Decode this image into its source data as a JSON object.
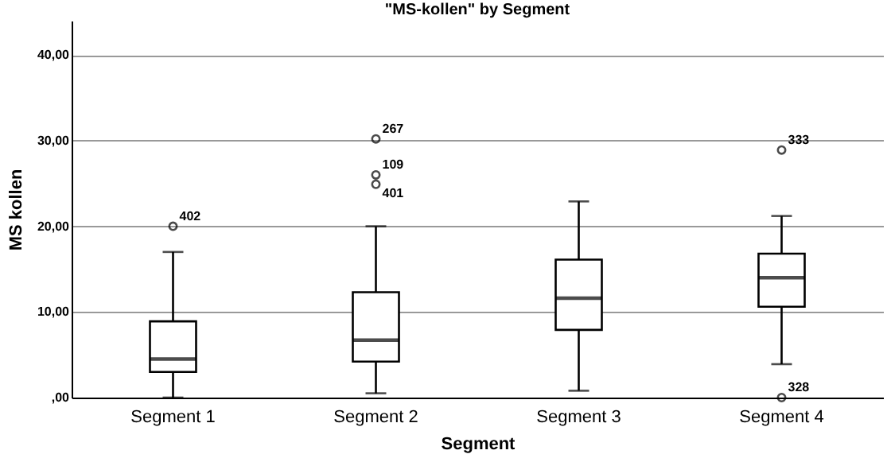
{
  "chart_data": {
    "type": "box",
    "title": "\"MS-kollen\" by Segment",
    "xlabel": "Segment",
    "ylabel": "MS kollen",
    "categories": [
      "Segment 1",
      "Segment 2",
      "Segment 3",
      "Segment 4"
    ],
    "boxes": [
      {
        "low": 0,
        "q1": 3,
        "median": 4.5,
        "q3": 8.9,
        "high": 17
      },
      {
        "low": 0.5,
        "q1": 4.2,
        "median": 6.7,
        "q3": 12.3,
        "high": 20
      },
      {
        "low": 0.8,
        "q1": 7.9,
        "median": 11.6,
        "q3": 16.1,
        "high": 22.9
      },
      {
        "low": 3.9,
        "q1": 10.6,
        "median": 14,
        "q3": 16.8,
        "high": 21.2
      }
    ],
    "series": [
      {
        "type": "scatter",
        "x": [
          "Segment 1",
          "Segment 2",
          "Segment 2",
          "Segment 2",
          "Segment 4",
          "Segment 4"
        ],
        "values": [
          20,
          30.2,
          26,
          24.9,
          28.9,
          0
        ]
      }
    ],
    "ylim": [
      0,
      44
    ],
    "yticks": [
      {
        "value": 0,
        "label": ",00"
      },
      {
        "value": 10,
        "label": "10,00"
      },
      {
        "value": 20,
        "label": "20,00"
      },
      {
        "value": 30,
        "label": "30,00"
      },
      {
        "value": 40,
        "label": "40,00"
      }
    ],
    "grid": "y",
    "marker": "circle",
    "annotations": [
      {
        "text": "402",
        "x": "Segment 1",
        "y": 20
      },
      {
        "text": "267",
        "x": "Segment 2",
        "y": 30.2
      },
      {
        "text": "109",
        "x": "Segment 2",
        "y": 26
      },
      {
        "text": "401",
        "x": "Segment 2",
        "y": 24.9
      },
      {
        "text": "333",
        "x": "Segment 4",
        "y": 28.9
      },
      {
        "text": "328",
        "x": "Segment 4",
        "y": 0
      }
    ]
  }
}
